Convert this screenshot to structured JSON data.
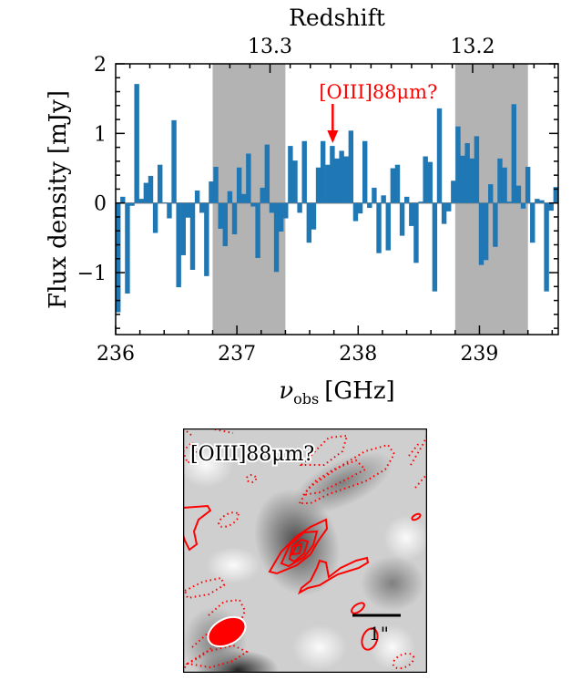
{
  "chart_data": {
    "type": "bar",
    "title": "",
    "xlabel_main": "ν",
    "xlabel_sub": "obs",
    "xlabel_unit": "[GHz]",
    "ylabel": "Flux density [mJy]",
    "xlim": [
      236.0,
      239.65
    ],
    "ylim": [
      -1.89,
      2.0
    ],
    "x_start": 236.0,
    "channel_width_ghz": 0.0384,
    "values": [
      -1.57,
      0.09,
      -1.3,
      -0.04,
      1.71,
      0.06,
      0.29,
      0.39,
      -0.43,
      0.55,
      0.01,
      -0.22,
      1.19,
      -1.21,
      -0.75,
      -0.21,
      -0.96,
      0.18,
      -0.14,
      -1.05,
      0.31,
      0.52,
      -0.37,
      -0.62,
      0.17,
      -0.45,
      0.51,
      0.13,
      0.71,
      -0.05,
      -0.79,
      0.22,
      0.84,
      -0.14,
      -0.99,
      -0.41,
      -0.22,
      0.82,
      0.61,
      -0.14,
      0.89,
      -0.57,
      -0.38,
      0.51,
      0.89,
      0.55,
      0.82,
      0.64,
      0.75,
      0.67,
      1.04,
      -0.26,
      -0.15,
      0.89,
      -0.07,
      0.22,
      -0.72,
      0.11,
      -0.68,
      0.5,
      0.55,
      -0.47,
      0.09,
      -0.33,
      -0.86,
      0.02,
      0.67,
      0.59,
      -1.27,
      1.36,
      -0.3,
      -0.12,
      0.32,
      1.1,
      0.68,
      0.86,
      0.64,
      0.96,
      -0.89,
      -0.82,
      0.27,
      -0.63,
      0.64,
      0.51,
      0.02,
      1.42,
      0.25,
      -0.08,
      0.52,
      -0.57,
      0.06,
      0.04,
      -1.27,
      -0.11,
      0.23
    ],
    "bar_color": "#1f77b4",
    "shaded_ranges_ghz": [
      [
        236.8,
        237.4
      ],
      [
        238.8,
        239.4
      ]
    ],
    "shade_color": "#b3b3b3",
    "x_ticks": [
      236,
      237,
      238,
      239
    ],
    "x_tick_labels": [
      "236",
      "237",
      "238",
      "239"
    ],
    "y_ticks": [
      2,
      1,
      0,
      -1
    ],
    "y_tick_labels": [
      "2",
      "1",
      "0",
      "−1"
    ],
    "top_axis": {
      "label": "Redshift",
      "rest_freq_ghz": 3393.006,
      "ticks": [
        13.3,
        13.2
      ],
      "tick_labels": [
        "13.3",
        "13.2"
      ]
    },
    "annotation": {
      "text": "[OIII]88μm?",
      "x_ghz": 237.79,
      "color": "#ff0000"
    }
  },
  "map_panel": {
    "label": "[OIII]88μm?",
    "scale_bar_label": "1\"",
    "contour_color": "#ff0000"
  }
}
